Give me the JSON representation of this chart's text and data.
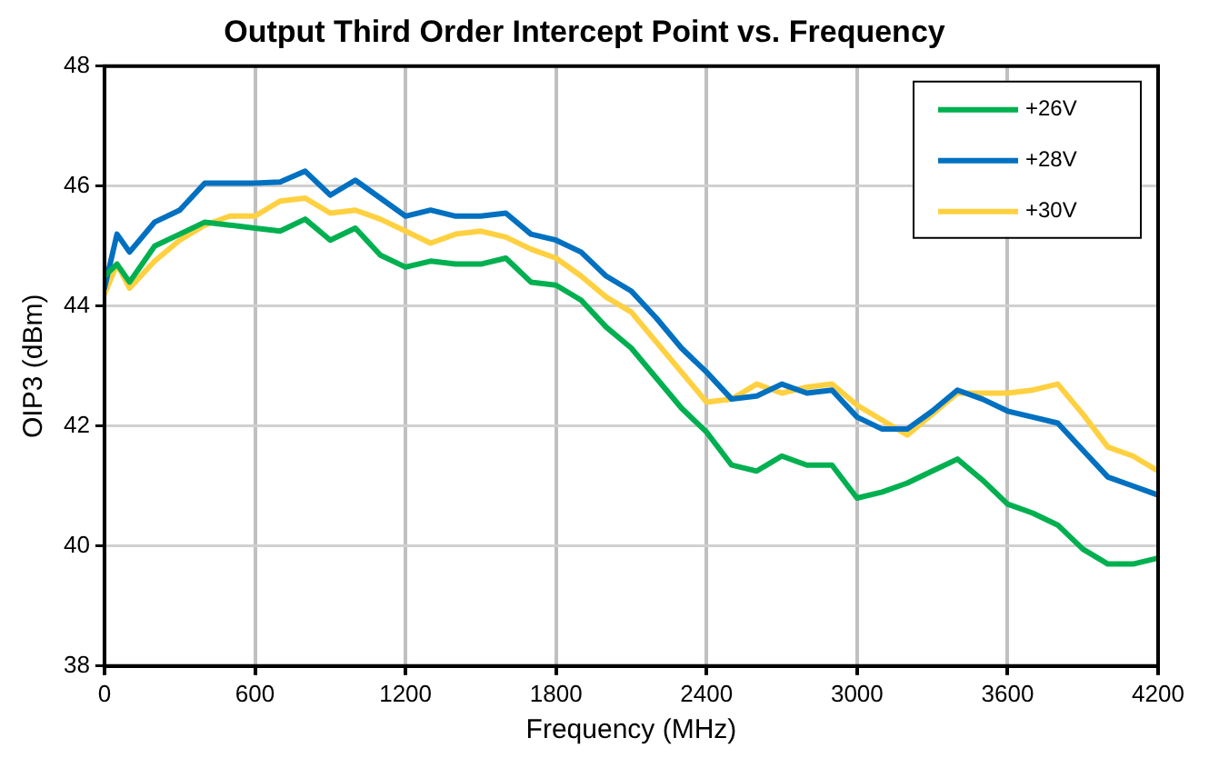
{
  "chart_data": {
    "type": "line",
    "title": "Output Third Order Intercept Point vs. Frequency",
    "xlabel": "Frequency (MHz)",
    "ylabel": "OIP3 (dBm)",
    "x": [
      0,
      50,
      100,
      200,
      300,
      400,
      500,
      600,
      700,
      800,
      900,
      1000,
      1100,
      1200,
      1300,
      1400,
      1500,
      1600,
      1700,
      1800,
      1900,
      2000,
      2100,
      2200,
      2300,
      2400,
      2500,
      2600,
      2700,
      2800,
      2900,
      3000,
      3100,
      3200,
      3300,
      3400,
      3500,
      3600,
      3700,
      3800,
      3900,
      4000,
      4100,
      4200
    ],
    "series": [
      {
        "name": "+26V",
        "color": "#00b050",
        "values": [
          44.5,
          44.7,
          44.4,
          45.0,
          45.2,
          45.4,
          45.35,
          45.3,
          45.25,
          45.45,
          45.1,
          45.3,
          44.85,
          44.65,
          44.75,
          44.7,
          44.7,
          44.8,
          44.4,
          44.35,
          44.1,
          43.65,
          43.3,
          42.8,
          42.3,
          41.9,
          41.35,
          41.25,
          41.5,
          41.35,
          41.35,
          40.8,
          40.9,
          41.05,
          41.25,
          41.45,
          41.1,
          40.7,
          40.55,
          40.35,
          39.95,
          39.7,
          39.7,
          39.8
        ]
      },
      {
        "name": "+28V",
        "color": "#0070c0",
        "values": [
          44.3,
          45.2,
          44.9,
          45.4,
          45.6,
          46.05,
          46.05,
          46.05,
          46.07,
          46.25,
          45.85,
          46.1,
          45.8,
          45.5,
          45.6,
          45.5,
          45.5,
          45.55,
          45.2,
          45.1,
          44.9,
          44.5,
          44.25,
          43.8,
          43.3,
          42.9,
          42.45,
          42.5,
          42.7,
          42.55,
          42.6,
          42.15,
          41.95,
          41.95,
          42.25,
          42.6,
          42.45,
          42.25,
          42.15,
          42.05,
          41.6,
          41.15,
          41.0,
          40.85
        ]
      },
      {
        "name": "+30V",
        "color": "#ffd040",
        "values": [
          44.2,
          44.7,
          44.3,
          44.75,
          45.1,
          45.35,
          45.5,
          45.5,
          45.75,
          45.8,
          45.55,
          45.6,
          45.45,
          45.25,
          45.05,
          45.2,
          45.25,
          45.15,
          44.95,
          44.8,
          44.5,
          44.15,
          43.9,
          43.4,
          42.9,
          42.4,
          42.45,
          42.7,
          42.55,
          42.65,
          42.7,
          42.35,
          42.1,
          41.85,
          42.2,
          42.55,
          42.55,
          42.55,
          42.6,
          42.7,
          42.2,
          41.65,
          41.5,
          41.25
        ]
      }
    ],
    "xlim": [
      0,
      4200
    ],
    "xticks": [
      0,
      600,
      1200,
      1800,
      2400,
      3000,
      3600,
      4200
    ],
    "ylim": [
      38,
      48
    ],
    "yticks": [
      38,
      40,
      42,
      44,
      46,
      48
    ],
    "grid": true,
    "legend": "top right",
    "marker": "none",
    "line_style": "solid"
  }
}
